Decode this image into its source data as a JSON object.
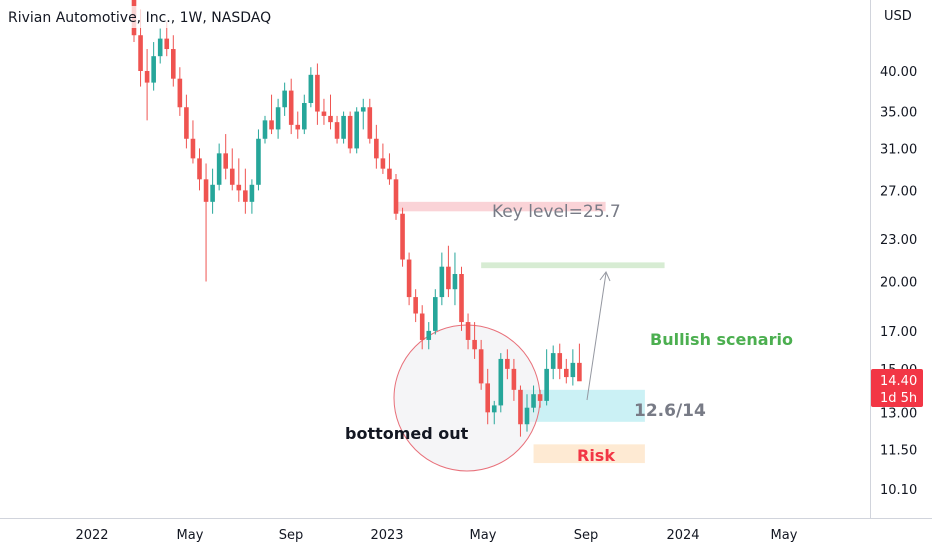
{
  "header": {
    "title": "Rivian Automotive, Inc., 1W, NASDAQ"
  },
  "colors": {
    "up": "#26a69a",
    "down": "#ef5350",
    "key_zone": "#f8c4c9",
    "target_zone": "#c9e6c4",
    "entry_zone": "#b9ecf2",
    "risk_zone": "#fde3c4",
    "bullish_text": "#4caf50",
    "risk_text": "#f23645",
    "label_text": "#787b86"
  },
  "chart_data": {
    "type": "candlestick",
    "title": "Rivian Automotive, Inc., 1W, NASDAQ",
    "currency": "USD",
    "y_scale": "log",
    "ylim": [
      9.3,
      48
    ],
    "y_ticks": [
      "40.00",
      "35.00",
      "31.00",
      "27.00",
      "23.00",
      "20.00",
      "17.00",
      "15.00",
      "13.00",
      "11.50",
      "10.10"
    ],
    "x_ticks": [
      "2022",
      "May",
      "Sep",
      "2023",
      "May",
      "Sep",
      "2024",
      "May"
    ],
    "last_price": {
      "value": "14.40",
      "countdown": "1d 5h"
    },
    "candles": [
      [
        52,
        54,
        44,
        45
      ],
      [
        45,
        49,
        38,
        40
      ],
      [
        40,
        43,
        34,
        38.5
      ],
      [
        38.5,
        44,
        37.5,
        42
      ],
      [
        42,
        46,
        41,
        44.5
      ],
      [
        44.5,
        47,
        42,
        43
      ],
      [
        43,
        45,
        38,
        39
      ],
      [
        39,
        40.5,
        34.5,
        35.5
      ],
      [
        35.5,
        37,
        31,
        32
      ],
      [
        32,
        34,
        29.5,
        30
      ],
      [
        30,
        31,
        27,
        28
      ],
      [
        28,
        29.5,
        20,
        26
      ],
      [
        26,
        29,
        25,
        27.5
      ],
      [
        27.5,
        31.5,
        27,
        30.5
      ],
      [
        30.5,
        32.5,
        28,
        29
      ],
      [
        29,
        31,
        27,
        27.5
      ],
      [
        27.5,
        30,
        26,
        27
      ],
      [
        27,
        29,
        25,
        26
      ],
      [
        26,
        28,
        25,
        27.5
      ],
      [
        27.5,
        33,
        27,
        32
      ],
      [
        32,
        34.5,
        31.5,
        34
      ],
      [
        34,
        37,
        32.5,
        33
      ],
      [
        33,
        36.5,
        32,
        35.5
      ],
      [
        35.5,
        38.5,
        34.5,
        37.5
      ],
      [
        37.5,
        39,
        32.5,
        33.5
      ],
      [
        33.5,
        35,
        32,
        33
      ],
      [
        33,
        37,
        32.5,
        36
      ],
      [
        36,
        40.5,
        35.5,
        39.5
      ],
      [
        39.5,
        41,
        33.5,
        35
      ],
      [
        35,
        36.5,
        33.5,
        34.5
      ],
      [
        34.5,
        37,
        33,
        33.8
      ],
      [
        33.8,
        34.5,
        31.5,
        32
      ],
      [
        32,
        35,
        31.5,
        34.5
      ],
      [
        34.5,
        35,
        30.5,
        31
      ],
      [
        31,
        35.5,
        30.5,
        35
      ],
      [
        35,
        36.5,
        33,
        35.5
      ],
      [
        35.5,
        36.5,
        31.5,
        32
      ],
      [
        32,
        33.5,
        29,
        30
      ],
      [
        30,
        31.5,
        28.5,
        29
      ],
      [
        29,
        30.5,
        27.5,
        28
      ],
      [
        28,
        28.5,
        24.5,
        25
      ],
      [
        25,
        25.5,
        21,
        21.5
      ],
      [
        21.5,
        22,
        18.5,
        19
      ],
      [
        19,
        19.5,
        17.5,
        18
      ],
      [
        18,
        18.5,
        16,
        16.5
      ],
      [
        16.5,
        17.5,
        16,
        17
      ],
      [
        17,
        19.5,
        16.8,
        19
      ],
      [
        19,
        22,
        18.5,
        21
      ],
      [
        21,
        22.5,
        19,
        19.5
      ],
      [
        19.5,
        22,
        18.5,
        20.5
      ],
      [
        20.5,
        21,
        17,
        17.5
      ],
      [
        17.5,
        18,
        16,
        16.5
      ],
      [
        16.5,
        17.5,
        15.5,
        16
      ],
      [
        16,
        16.5,
        14,
        14.3
      ],
      [
        14.3,
        15,
        12.5,
        13
      ],
      [
        13,
        13.5,
        12.5,
        13.3
      ],
      [
        13.3,
        15.8,
        13,
        15.5
      ],
      [
        15.5,
        16,
        14.5,
        15
      ],
      [
        15,
        15.5,
        13.5,
        14
      ],
      [
        14,
        14.2,
        12,
        12.5
      ],
      [
        12.5,
        13.8,
        12.2,
        13.2
      ],
      [
        13.2,
        14.2,
        13,
        13.8
      ],
      [
        13.8,
        14,
        13.2,
        13.5
      ],
      [
        13.5,
        16,
        13.3,
        15
      ],
      [
        15,
        16.2,
        14.5,
        15.8
      ],
      [
        15.8,
        16.3,
        14.5,
        15
      ],
      [
        15,
        15.5,
        14.3,
        14.6
      ],
      [
        14.6,
        16,
        14.2,
        15.3
      ],
      [
        15.3,
        16.3,
        14.5,
        14.4
      ]
    ],
    "zones": [
      {
        "name": "key-level",
        "price_top": 26.0,
        "price_bottom": 25.2,
        "start_bar": 40,
        "end_bar": 72
      },
      {
        "name": "target",
        "price_top": 21.3,
        "price_bottom": 20.9,
        "start_bar": 53,
        "end_bar": 81
      },
      {
        "name": "entry",
        "price_top": 14.0,
        "price_bottom": 12.6,
        "start_bar": 59,
        "end_bar": 78
      },
      {
        "name": "risk",
        "price_top": 11.7,
        "price_bottom": 11.0,
        "start_bar": 61,
        "end_bar": 78
      }
    ],
    "annotations": {
      "key_level": "Key level=25.7",
      "bullish": "Bullish scenario",
      "entry": "12.6/14",
      "risk": "Risk",
      "bottomed": "bottomed out"
    }
  }
}
